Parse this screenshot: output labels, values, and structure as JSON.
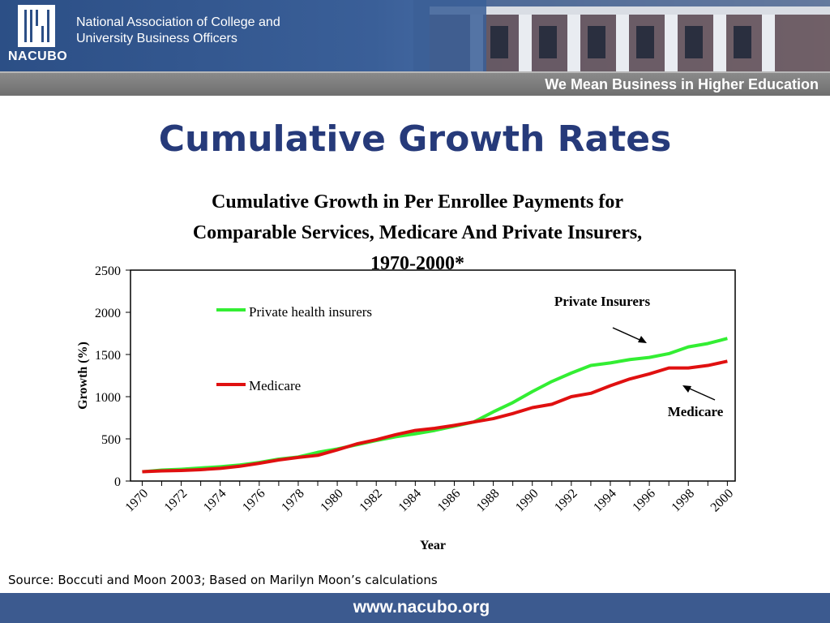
{
  "header": {
    "logo_text": "NACUBO",
    "org_name_line1": "National Association of College and",
    "org_name_line2": "University Business Officers",
    "tagline": "We Mean Business in Higher Education"
  },
  "slide_title": "Cumulative Growth Rates",
  "chart_data": {
    "type": "line",
    "title_line1": "Cumulative Growth in Per Enrollee Payments for",
    "title_line2": "Comparable Services, Medicare And Private Insurers,",
    "title_line3": "1970-2000*",
    "xlabel": "Year",
    "ylabel": "Growth (%)",
    "ylim": [
      0,
      2500
    ],
    "yticks": [
      "0",
      "500",
      "1000",
      "1500",
      "2000",
      "2500"
    ],
    "xticks": [
      "1970",
      "1972",
      "1974",
      "1976",
      "1978",
      "1980",
      "1982",
      "1984",
      "1986",
      "1988",
      "1990",
      "1992",
      "1994",
      "1996",
      "1998",
      "2000"
    ],
    "x": [
      1970,
      1971,
      1972,
      1973,
      1974,
      1975,
      1976,
      1977,
      1978,
      1979,
      1980,
      1981,
      1982,
      1983,
      1984,
      1985,
      1986,
      1987,
      1988,
      1989,
      1990,
      1991,
      1992,
      1993,
      1994,
      1995,
      1996,
      1997,
      1998,
      1999,
      2000
    ],
    "series": [
      {
        "name": "Private health insurers",
        "color": "#33ee33",
        "values": [
          110,
          130,
          140,
          155,
          170,
          190,
          220,
          260,
          285,
          340,
          380,
          430,
          480,
          525,
          560,
          600,
          650,
          700,
          820,
          930,
          1060,
          1180,
          1280,
          1370,
          1400,
          1440,
          1465,
          1510,
          1590,
          1630,
          1690
        ]
      },
      {
        "name": "Medicare",
        "color": "#e01010",
        "values": [
          110,
          120,
          125,
          135,
          150,
          175,
          210,
          250,
          280,
          305,
          370,
          440,
          490,
          550,
          600,
          625,
          660,
          700,
          740,
          800,
          870,
          910,
          1000,
          1040,
          1130,
          1210,
          1270,
          1340,
          1340,
          1370,
          1420
        ]
      }
    ],
    "annotations": [
      "Private Insurers",
      "Medicare"
    ],
    "legend_position": "upper-left",
    "grid": false
  },
  "source_note": "Source: Boccuti and Moon 2003; Based on Marilyn Moon’s calculations",
  "footer": {
    "url": "www.nacubo.org"
  }
}
